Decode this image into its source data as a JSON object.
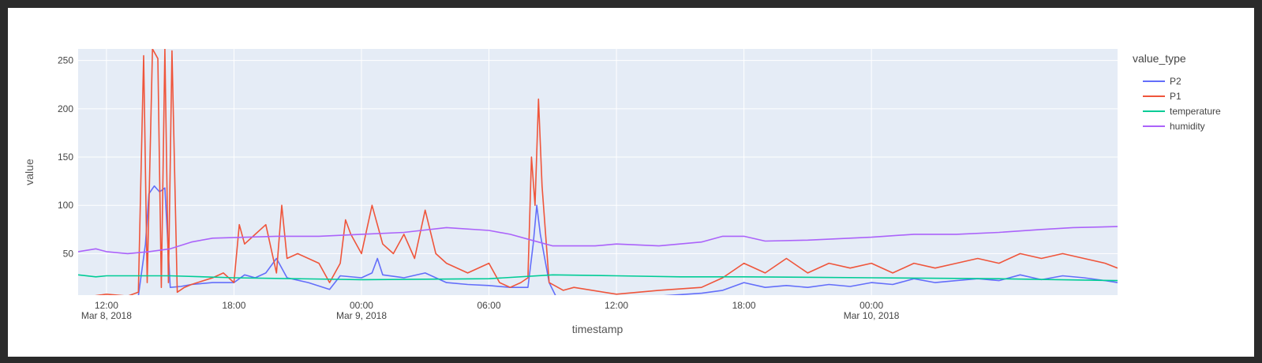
{
  "chart_data": {
    "type": "line",
    "title": "",
    "xlabel": "timestamp",
    "ylabel": "value",
    "x_start": "2018-03-08T10:40",
    "x_end": "2018-03-10T11:35",
    "ylim": [
      7,
      262
    ],
    "grid": true,
    "legend_position": "right",
    "legend_title": "value_type",
    "x_ticks": [
      {
        "t": "2018-03-08T12:00",
        "line1": "12:00",
        "line2": "Mar 8, 2018"
      },
      {
        "t": "2018-03-08T18:00",
        "line1": "18:00",
        "line2": ""
      },
      {
        "t": "2018-03-09T00:00",
        "line1": "00:00",
        "line2": "Mar 9, 2018"
      },
      {
        "t": "2018-03-09T06:00",
        "line1": "06:00",
        "line2": ""
      },
      {
        "t": "2018-03-09T12:00",
        "line1": "12:00",
        "line2": ""
      },
      {
        "t": "2018-03-09T18:00",
        "line1": "18:00",
        "line2": ""
      },
      {
        "t": "2018-03-10T00:00",
        "line1": "00:00",
        "line2": "Mar 10, 2018"
      }
    ],
    "y_ticks": [
      50,
      100,
      150,
      200,
      250
    ],
    "series": [
      {
        "name": "P2",
        "color": "#636EFA",
        "points": [
          [
            "2018-03-08T10:40",
            5
          ],
          [
            "2018-03-08T12:00",
            5
          ],
          [
            "2018-03-08T13:30",
            6
          ],
          [
            "2018-03-08T13:50",
            60
          ],
          [
            "2018-03-08T14:00",
            112
          ],
          [
            "2018-03-08T14:15",
            120
          ],
          [
            "2018-03-08T14:30",
            114
          ],
          [
            "2018-03-08T14:45",
            118
          ],
          [
            "2018-03-08T15:00",
            15
          ],
          [
            "2018-03-08T15:30",
            16
          ],
          [
            "2018-03-08T16:00",
            18
          ],
          [
            "2018-03-08T17:00",
            20
          ],
          [
            "2018-03-08T18:00",
            20
          ],
          [
            "2018-03-08T18:30",
            28
          ],
          [
            "2018-03-08T19:00",
            25
          ],
          [
            "2018-03-08T19:30",
            30
          ],
          [
            "2018-03-08T20:00",
            45
          ],
          [
            "2018-03-08T20:30",
            25
          ],
          [
            "2018-03-08T21:30",
            20
          ],
          [
            "2018-03-08T22:30",
            13
          ],
          [
            "2018-03-08T23:00",
            27
          ],
          [
            "2018-03-09T00:00",
            25
          ],
          [
            "2018-03-09T00:30",
            30
          ],
          [
            "2018-03-09T00:45",
            45
          ],
          [
            "2018-03-09T01:00",
            28
          ],
          [
            "2018-03-09T02:00",
            25
          ],
          [
            "2018-03-09T03:00",
            30
          ],
          [
            "2018-03-09T04:00",
            20
          ],
          [
            "2018-03-09T05:00",
            18
          ],
          [
            "2018-03-09T06:00",
            17
          ],
          [
            "2018-03-09T07:00",
            15
          ],
          [
            "2018-03-09T07:50",
            15
          ],
          [
            "2018-03-09T08:05",
            60
          ],
          [
            "2018-03-09T08:15",
            100
          ],
          [
            "2018-03-09T08:25",
            70
          ],
          [
            "2018-03-09T08:50",
            20
          ],
          [
            "2018-03-09T09:10",
            5
          ],
          [
            "2018-03-09T12:00",
            5
          ],
          [
            "2018-03-09T14:00",
            6
          ],
          [
            "2018-03-09T16:00",
            9
          ],
          [
            "2018-03-09T17:00",
            12
          ],
          [
            "2018-03-09T18:00",
            20
          ],
          [
            "2018-03-09T19:00",
            15
          ],
          [
            "2018-03-09T20:00",
            17
          ],
          [
            "2018-03-09T21:00",
            15
          ],
          [
            "2018-03-09T22:00",
            18
          ],
          [
            "2018-03-09T23:00",
            16
          ],
          [
            "2018-03-10T00:00",
            20
          ],
          [
            "2018-03-10T01:00",
            18
          ],
          [
            "2018-03-10T02:00",
            24
          ],
          [
            "2018-03-10T03:00",
            20
          ],
          [
            "2018-03-10T04:00",
            22
          ],
          [
            "2018-03-10T05:00",
            24
          ],
          [
            "2018-03-10T06:00",
            22
          ],
          [
            "2018-03-10T07:00",
            28
          ],
          [
            "2018-03-10T08:00",
            23
          ],
          [
            "2018-03-10T09:00",
            27
          ],
          [
            "2018-03-10T10:00",
            25
          ],
          [
            "2018-03-10T11:00",
            22
          ],
          [
            "2018-03-10T11:35",
            20
          ]
        ]
      },
      {
        "name": "P1",
        "color": "#EF553B",
        "points": [
          [
            "2018-03-08T10:40",
            4
          ],
          [
            "2018-03-08T12:00",
            8
          ],
          [
            "2018-03-08T13:00",
            6
          ],
          [
            "2018-03-08T13:30",
            10
          ],
          [
            "2018-03-08T13:45",
            255
          ],
          [
            "2018-03-08T13:55",
            20
          ],
          [
            "2018-03-08T14:10",
            262
          ],
          [
            "2018-03-08T14:25",
            252
          ],
          [
            "2018-03-08T14:35",
            15
          ],
          [
            "2018-03-08T14:45",
            262
          ],
          [
            "2018-03-08T14:55",
            20
          ],
          [
            "2018-03-08T15:05",
            260
          ],
          [
            "2018-03-08T15:20",
            10
          ],
          [
            "2018-03-08T15:40",
            15
          ],
          [
            "2018-03-08T16:00",
            18
          ],
          [
            "2018-03-08T17:00",
            25
          ],
          [
            "2018-03-08T17:30",
            30
          ],
          [
            "2018-03-08T18:00",
            20
          ],
          [
            "2018-03-08T18:15",
            80
          ],
          [
            "2018-03-08T18:30",
            60
          ],
          [
            "2018-03-08T19:00",
            70
          ],
          [
            "2018-03-08T19:30",
            80
          ],
          [
            "2018-03-08T20:00",
            30
          ],
          [
            "2018-03-08T20:15",
            100
          ],
          [
            "2018-03-08T20:30",
            45
          ],
          [
            "2018-03-08T21:00",
            50
          ],
          [
            "2018-03-08T22:00",
            40
          ],
          [
            "2018-03-08T22:30",
            20
          ],
          [
            "2018-03-08T23:00",
            40
          ],
          [
            "2018-03-08T23:15",
            85
          ],
          [
            "2018-03-08T23:30",
            70
          ],
          [
            "2018-03-09T00:00",
            50
          ],
          [
            "2018-03-09T00:30",
            100
          ],
          [
            "2018-03-09T01:00",
            60
          ],
          [
            "2018-03-09T01:30",
            50
          ],
          [
            "2018-03-09T02:00",
            70
          ],
          [
            "2018-03-09T02:30",
            45
          ],
          [
            "2018-03-09T03:00",
            95
          ],
          [
            "2018-03-09T03:30",
            50
          ],
          [
            "2018-03-09T04:00",
            40
          ],
          [
            "2018-03-09T05:00",
            30
          ],
          [
            "2018-03-09T06:00",
            40
          ],
          [
            "2018-03-09T06:30",
            20
          ],
          [
            "2018-03-09T07:00",
            15
          ],
          [
            "2018-03-09T07:30",
            20
          ],
          [
            "2018-03-09T07:50",
            25
          ],
          [
            "2018-03-09T08:00",
            150
          ],
          [
            "2018-03-09T08:10",
            100
          ],
          [
            "2018-03-09T08:20",
            210
          ],
          [
            "2018-03-09T08:30",
            120
          ],
          [
            "2018-03-09T08:50",
            20
          ],
          [
            "2018-03-09T09:30",
            12
          ],
          [
            "2018-03-09T10:00",
            15
          ],
          [
            "2018-03-09T12:00",
            8
          ],
          [
            "2018-03-09T14:00",
            12
          ],
          [
            "2018-03-09T16:00",
            15
          ],
          [
            "2018-03-09T17:00",
            25
          ],
          [
            "2018-03-09T18:00",
            40
          ],
          [
            "2018-03-09T19:00",
            30
          ],
          [
            "2018-03-09T20:00",
            45
          ],
          [
            "2018-03-09T21:00",
            30
          ],
          [
            "2018-03-09T22:00",
            40
          ],
          [
            "2018-03-09T23:00",
            35
          ],
          [
            "2018-03-10T00:00",
            40
          ],
          [
            "2018-03-10T01:00",
            30
          ],
          [
            "2018-03-10T02:00",
            40
          ],
          [
            "2018-03-10T03:00",
            35
          ],
          [
            "2018-03-10T04:00",
            40
          ],
          [
            "2018-03-10T05:00",
            45
          ],
          [
            "2018-03-10T06:00",
            40
          ],
          [
            "2018-03-10T07:00",
            50
          ],
          [
            "2018-03-10T08:00",
            45
          ],
          [
            "2018-03-10T09:00",
            50
          ],
          [
            "2018-03-10T10:00",
            45
          ],
          [
            "2018-03-10T11:00",
            40
          ],
          [
            "2018-03-10T11:35",
            35
          ]
        ]
      },
      {
        "name": "temperature",
        "color": "#00CC96",
        "points": [
          [
            "2018-03-08T10:40",
            28
          ],
          [
            "2018-03-08T11:30",
            26
          ],
          [
            "2018-03-08T12:00",
            27
          ],
          [
            "2018-03-08T15:00",
            27
          ],
          [
            "2018-03-08T18:00",
            25
          ],
          [
            "2018-03-09T00:00",
            23
          ],
          [
            "2018-03-09T06:00",
            24
          ],
          [
            "2018-03-09T09:00",
            28
          ],
          [
            "2018-03-09T12:00",
            27
          ],
          [
            "2018-03-09T15:00",
            26
          ],
          [
            "2018-03-09T18:00",
            26
          ],
          [
            "2018-03-10T00:00",
            25
          ],
          [
            "2018-03-10T06:00",
            24
          ],
          [
            "2018-03-10T11:35",
            22
          ]
        ]
      },
      {
        "name": "humidity",
        "color": "#AB63FA",
        "points": [
          [
            "2018-03-08T10:40",
            52
          ],
          [
            "2018-03-08T11:30",
            55
          ],
          [
            "2018-03-08T12:00",
            52
          ],
          [
            "2018-03-08T13:00",
            50
          ],
          [
            "2018-03-08T14:00",
            52
          ],
          [
            "2018-03-08T15:00",
            55
          ],
          [
            "2018-03-08T16:00",
            62
          ],
          [
            "2018-03-08T17:00",
            66
          ],
          [
            "2018-03-08T20:00",
            68
          ],
          [
            "2018-03-08T22:00",
            68
          ],
          [
            "2018-03-09T00:00",
            70
          ],
          [
            "2018-03-09T02:00",
            72
          ],
          [
            "2018-03-09T04:00",
            77
          ],
          [
            "2018-03-09T06:00",
            74
          ],
          [
            "2018-03-09T07:00",
            70
          ],
          [
            "2018-03-09T08:00",
            64
          ],
          [
            "2018-03-09T09:00",
            58
          ],
          [
            "2018-03-09T11:00",
            58
          ],
          [
            "2018-03-09T12:00",
            60
          ],
          [
            "2018-03-09T14:00",
            58
          ],
          [
            "2018-03-09T16:00",
            62
          ],
          [
            "2018-03-09T17:00",
            68
          ],
          [
            "2018-03-09T18:00",
            68
          ],
          [
            "2018-03-09T19:00",
            63
          ],
          [
            "2018-03-09T21:00",
            64
          ],
          [
            "2018-03-10T00:00",
            67
          ],
          [
            "2018-03-10T02:00",
            70
          ],
          [
            "2018-03-10T04:00",
            70
          ],
          [
            "2018-03-10T06:00",
            72
          ],
          [
            "2018-03-10T08:00",
            75
          ],
          [
            "2018-03-10T09:30",
            77
          ],
          [
            "2018-03-10T11:35",
            78
          ]
        ]
      }
    ]
  }
}
